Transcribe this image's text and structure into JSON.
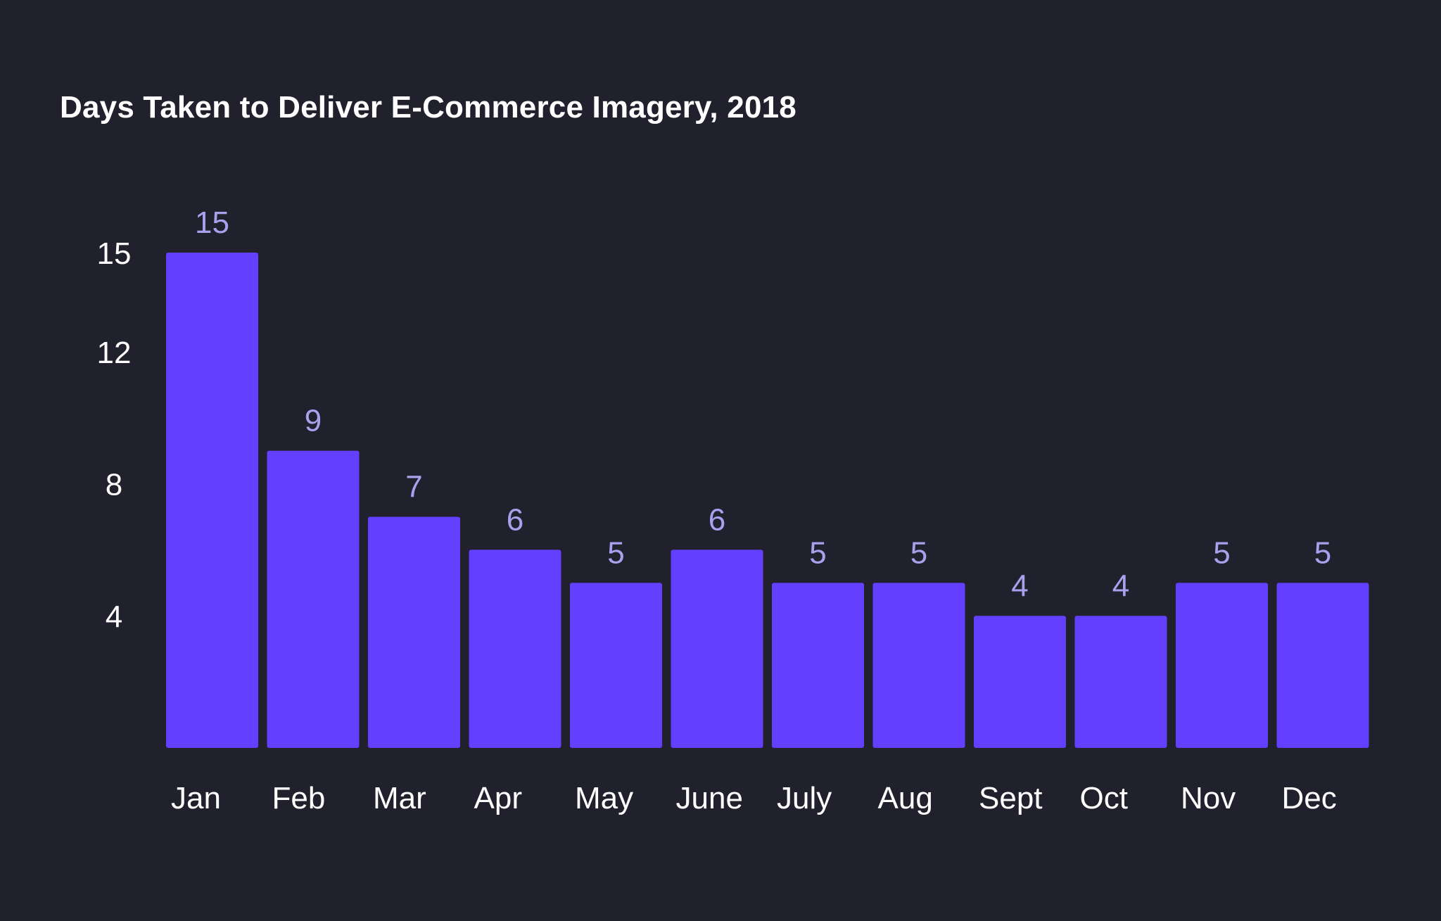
{
  "chart_data": {
    "type": "bar",
    "title": "Days Taken to Deliver E-Commerce Imagery, 2018",
    "xlabel": "",
    "ylabel": "",
    "categories": [
      "Jan",
      "Feb",
      "Mar",
      "Apr",
      "May",
      "June",
      "July",
      "Aug",
      "Sept",
      "Oct",
      "Nov",
      "Dec"
    ],
    "values": [
      15,
      9,
      7,
      6,
      5,
      6,
      5,
      5,
      4,
      4,
      5,
      5
    ],
    "data_labels": [
      "15",
      "9",
      "7",
      "6",
      "5",
      "6",
      "5",
      "5",
      "4",
      "4",
      "5",
      "5"
    ],
    "y_ticks": [
      {
        "value": 15,
        "label": "15"
      },
      {
        "value": 12,
        "label": "12"
      },
      {
        "value": 8,
        "label": "8"
      },
      {
        "value": 4,
        "label": "4"
      }
    ],
    "ylim": [
      0,
      15
    ],
    "grid": false,
    "legend": "none",
    "colors": {
      "background": "#20212c",
      "bar": "#6340ff",
      "data_label": "#aaa1ee",
      "text": "#ffffff"
    }
  }
}
